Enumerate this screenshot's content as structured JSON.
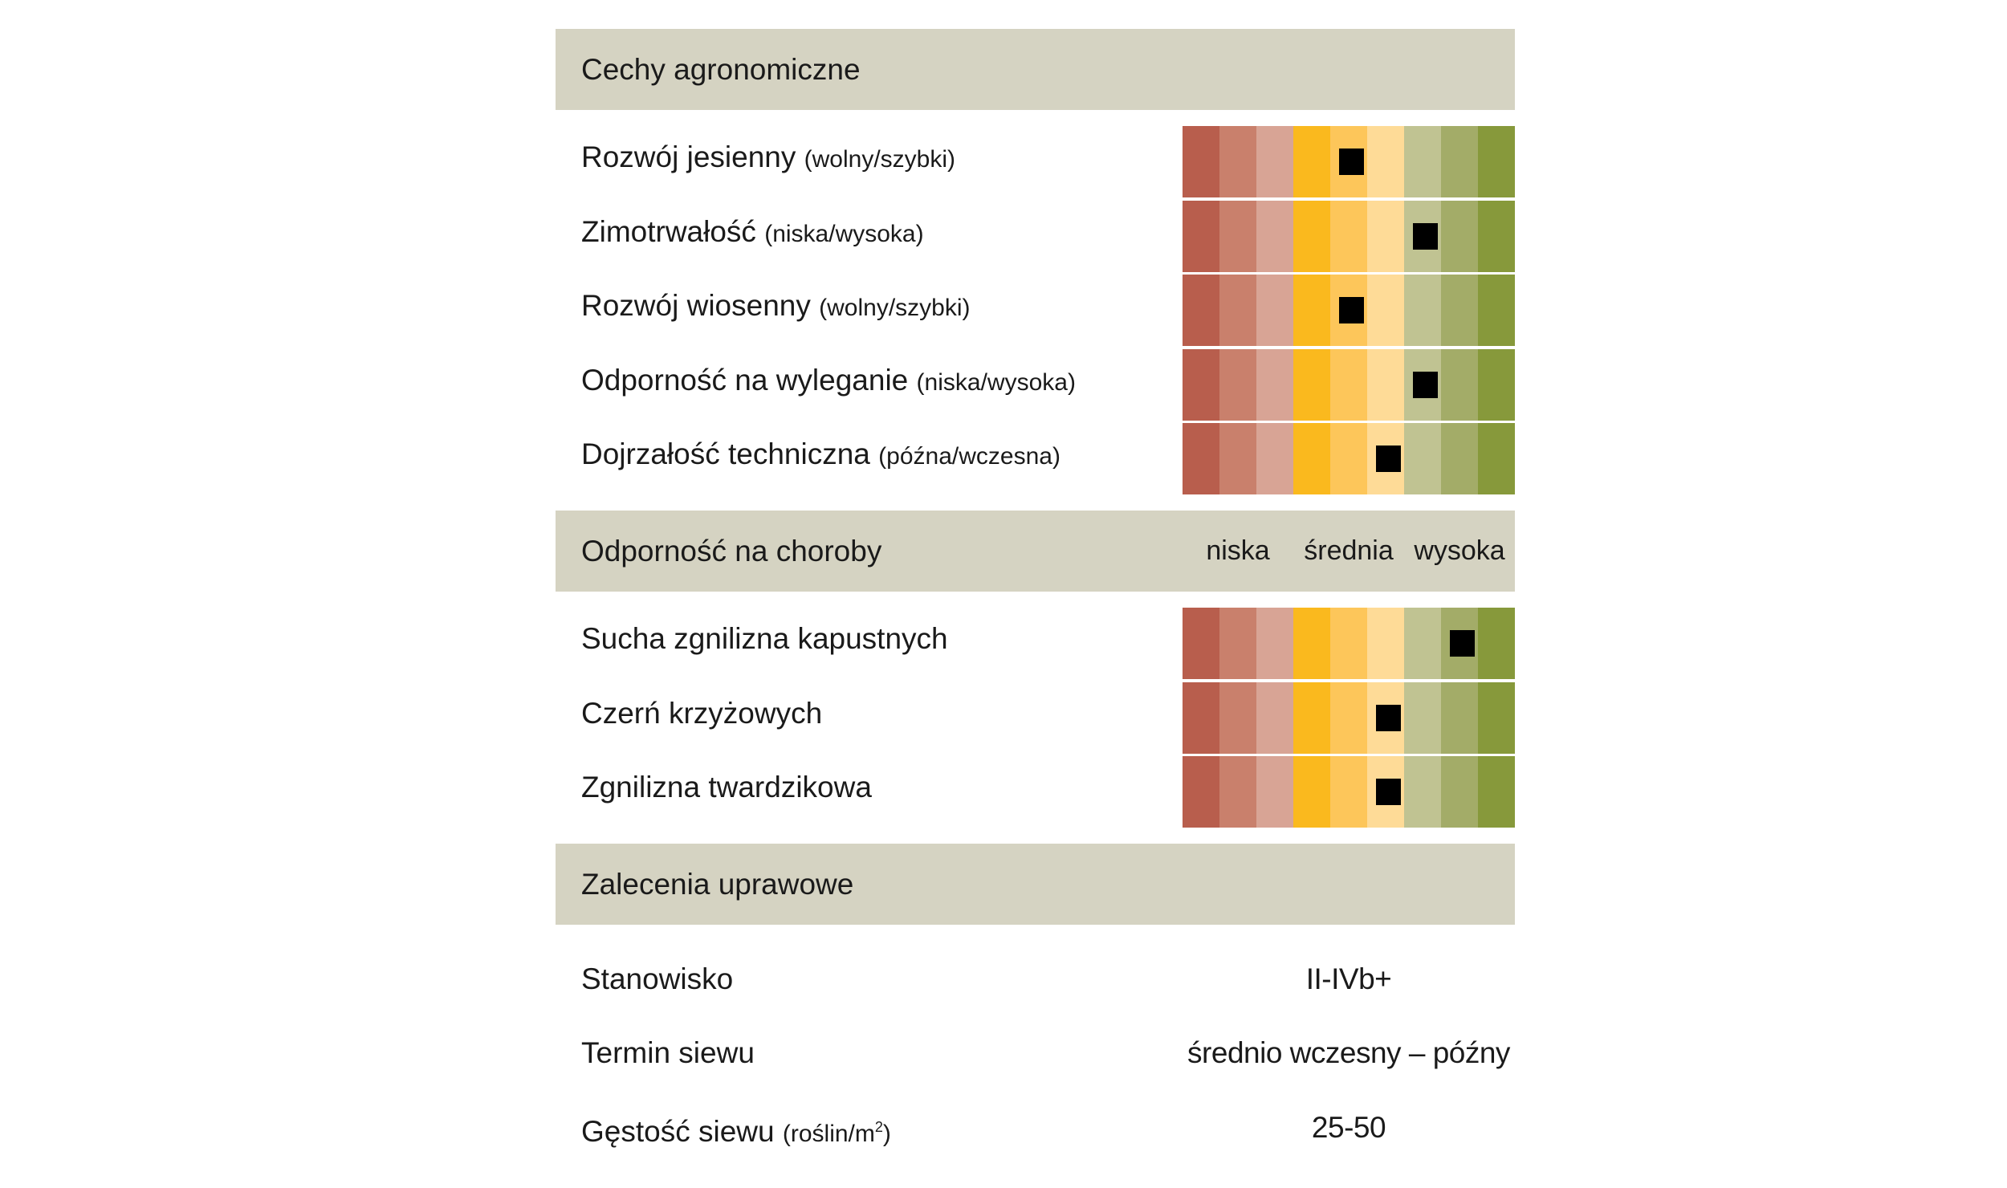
{
  "scale_colors": [
    "#b85e4d",
    "#c9806c",
    "#d8a495",
    "#fab91e",
    "#fdc65a",
    "#fedb97",
    "#c0c392",
    "#a3ac68",
    "#87993b"
  ],
  "sections": {
    "agronomic": {
      "title": "Cechy agronomiczne",
      "rows": [
        {
          "label": "Rozwój jesienny",
          "sub": "(wolny/szybki)",
          "level": 5
        },
        {
          "label": "Zimotrwałość",
          "sub": "(niska/wysoka)",
          "level": 7
        },
        {
          "label": "Rozwój wiosenny",
          "sub": "(wolny/szybki)",
          "level": 5
        },
        {
          "label": "Odporność na wyleganie",
          "sub": "(niska/wysoka)",
          "level": 7
        },
        {
          "label": "Dojrzałość techniczna",
          "sub": "(późna/wczesna)",
          "level": 6
        }
      ]
    },
    "disease": {
      "title": "Odporność na choroby",
      "scale_labels": [
        "niska",
        "średnia",
        "wysoka"
      ],
      "rows": [
        {
          "label": "Sucha zgnilizna kapustnych",
          "level": 8
        },
        {
          "label": "Czerń krzyżowych",
          "level": 6
        },
        {
          "label": "Zgnilizna twardzikowa",
          "level": 6
        }
      ]
    },
    "recommendations": {
      "title": "Zalecenia uprawowe",
      "rows": [
        {
          "label": "Stanowisko",
          "value": "II-IVb+"
        },
        {
          "label": "Termin siewu",
          "value": "średnio wczesny – późny"
        },
        {
          "label": "Gęstość siewu",
          "sub": "(roślin/m",
          "sup": "2",
          "sub_end": ")",
          "value": "25-50"
        }
      ]
    }
  }
}
